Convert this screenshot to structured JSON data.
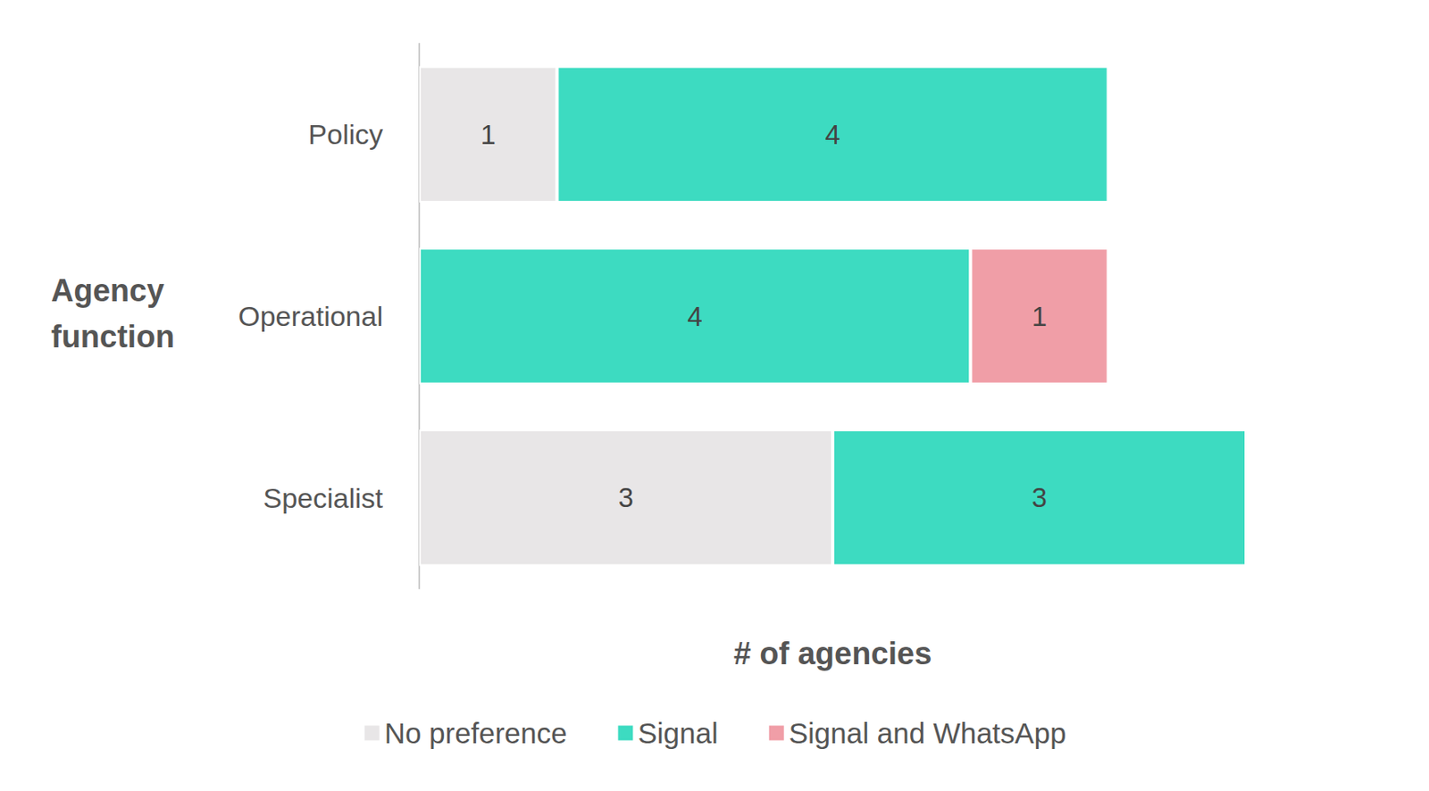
{
  "chart_data": {
    "type": "bar",
    "orientation": "horizontal",
    "stacked": true,
    "data_labels": true,
    "tick_labels": "y",
    "grid": false,
    "legend": "bottom",
    "xlabel": "# of agencies",
    "ylabel": "Agency function",
    "categories": [
      "Policy",
      "Operational",
      "Specialist"
    ],
    "xlim": [
      0,
      6
    ],
    "series": [
      {
        "name": "No preference",
        "color": "#e8e6e7",
        "values": [
          1,
          null,
          3
        ]
      },
      {
        "name": "Signal",
        "color": "#3ddbc1",
        "values": [
          4,
          4,
          3
        ]
      },
      {
        "name": "Signal and WhatsApp",
        "color": "#f09ea7",
        "values": [
          null,
          1,
          null
        ]
      }
    ]
  }
}
